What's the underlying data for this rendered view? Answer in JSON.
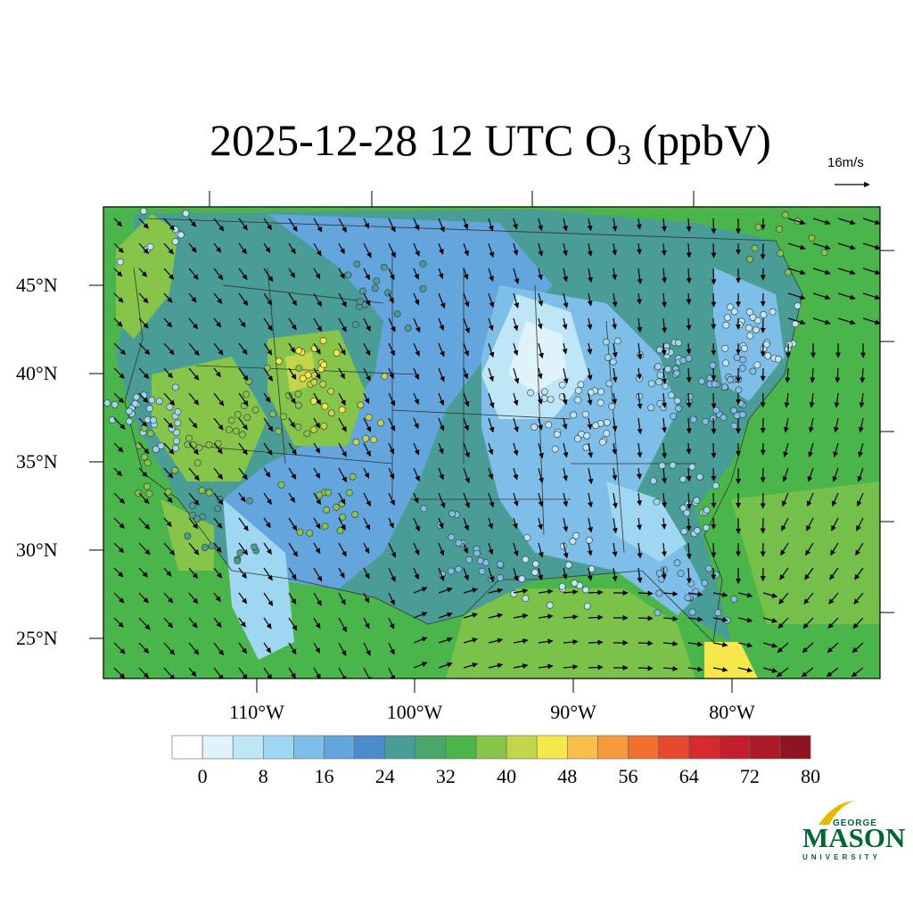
{
  "title": {
    "main": "2025-12-28 12 UTC O",
    "sub": "3",
    "suffix": " (ppbV)"
  },
  "vector_scale": {
    "label": "16m/s"
  },
  "lat_labels": [
    "45°N",
    "40°N",
    "35°N",
    "30°N",
    "25°N"
  ],
  "lon_labels": [
    "110°W",
    "100°W",
    "90°W",
    "80°W"
  ],
  "colorbar": {
    "labels": [
      "0",
      "8",
      "16",
      "24",
      "32",
      "40",
      "48",
      "56",
      "64",
      "72",
      "80"
    ],
    "colors": [
      "#ffffff",
      "#e0f3fa",
      "#bfe6f7",
      "#9fd7f3",
      "#7fbee8",
      "#63a5dc",
      "#4a8ccc",
      "#4a9d96",
      "#4aa66b",
      "#4ab54a",
      "#86c54a",
      "#c3d64a",
      "#f6e84a",
      "#f8c04a",
      "#f69a3e",
      "#f1702f",
      "#e64a2e",
      "#d62b2e",
      "#c21e2c",
      "#ab1a26",
      "#8f1420"
    ]
  },
  "logo": {
    "top": "GEORGE",
    "main": "MASON",
    "bottom": "UNIVERSITY",
    "color": "#006633"
  },
  "field_colors": {
    "ocean": "#4ab54a",
    "low": "#bfe6f7",
    "mid": "#63a5dc",
    "teal": "#4a9d96",
    "high": "#86c54a",
    "peak": "#f6e84a"
  }
}
